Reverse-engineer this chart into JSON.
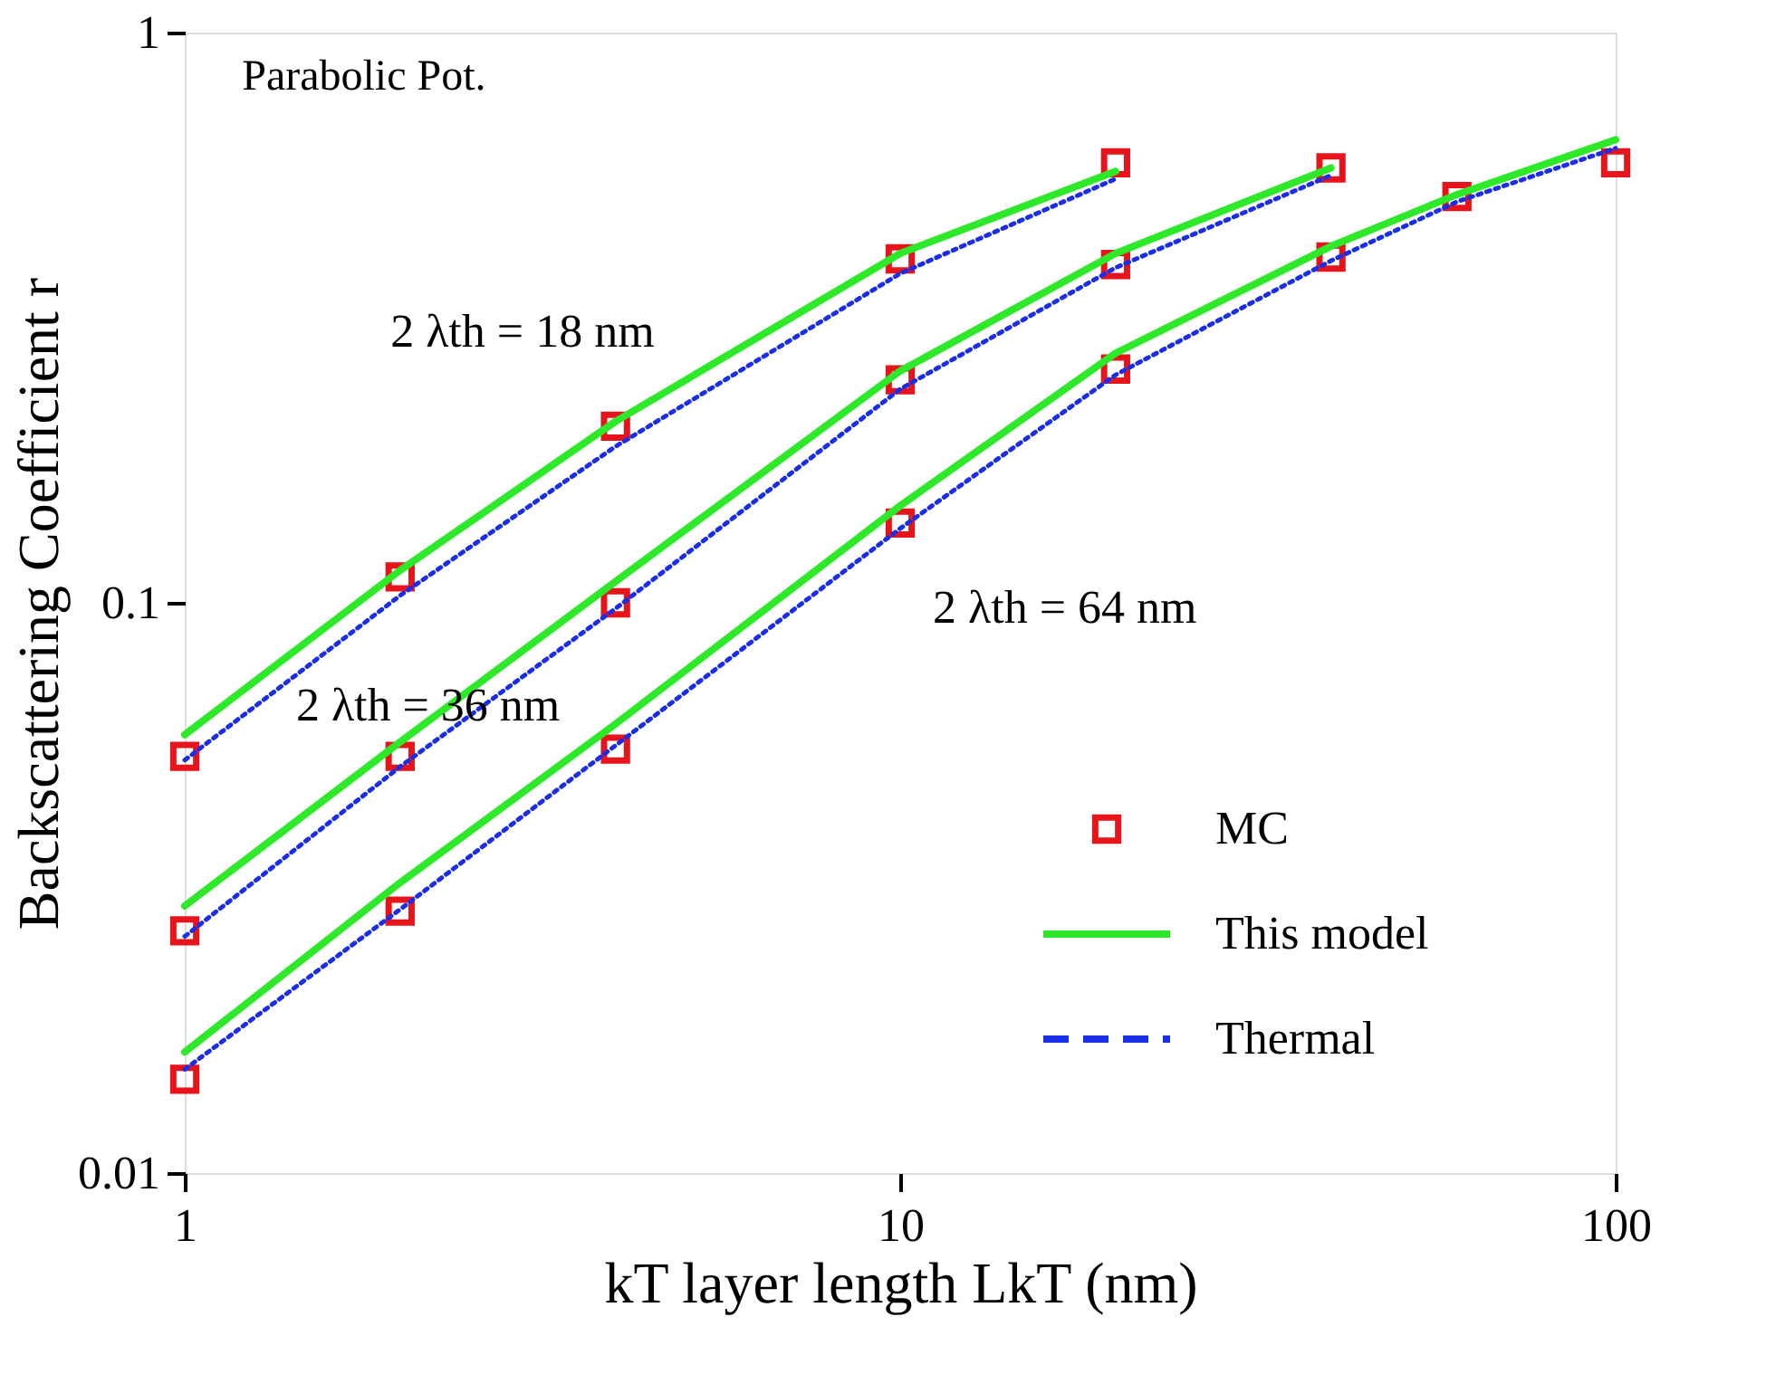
{
  "chart_data": {
    "type": "line",
    "xlabel": "kT layer length LkT (nm)",
    "ylabel": "Backscattering Coefficient r",
    "log": "xy",
    "xlim": [
      1,
      100
    ],
    "ylim": [
      0.01,
      1
    ],
    "xticks": [
      1,
      10,
      100
    ],
    "yticks": [
      0.01,
      0.1,
      1
    ],
    "grid": false,
    "legend": "bottom right",
    "annotations": [
      "Parabolic Pot.",
      "2 λth = 18 nm",
      "2 λth = 36 nm",
      "2 λth = 64 nm"
    ],
    "series": [
      {
        "name": "MC",
        "type": "scatter",
        "marker": "square",
        "color": "#e8141b",
        "x": [
          1,
          2,
          4,
          10,
          20
        ],
        "values": [
          0.0538,
          0.111,
          0.204,
          0.401,
          0.591
        ]
      },
      {
        "type": "scatter",
        "marker": "square",
        "color": "#e8141b",
        "x": [
          1,
          2,
          4,
          10,
          20,
          40
        ],
        "values": [
          0.0266,
          0.0538,
          0.1,
          0.246,
          0.392,
          0.579
        ]
      },
      {
        "type": "scatter",
        "marker": "square",
        "color": "#e8141b",
        "x": [
          1,
          2,
          4,
          10,
          20,
          40,
          60,
          100
        ],
        "values": [
          0.0146,
          0.0288,
          0.0554,
          0.138,
          0.257,
          0.404,
          0.516,
          0.591
        ]
      },
      {
        "name": "This model",
        "line_style": "solid",
        "color": "#2ee82a",
        "x": [
          1,
          2,
          4,
          10,
          20
        ],
        "values": [
          0.0587,
          0.114,
          0.208,
          0.41,
          0.571
        ]
      },
      {
        "line_style": "solid",
        "color": "#2ee82a",
        "x": [
          1,
          2,
          4,
          10,
          20,
          40
        ],
        "values": [
          0.0294,
          0.057,
          0.109,
          0.255,
          0.41,
          0.579
        ]
      },
      {
        "line_style": "solid",
        "color": "#2ee82a",
        "x": [
          1,
          2,
          4,
          10,
          20,
          40,
          60,
          100
        ],
        "values": [
          0.0163,
          0.0323,
          0.0613,
          0.148,
          0.274,
          0.422,
          0.52,
          0.649
        ]
      },
      {
        "name": "Thermal",
        "line_style": "dotted",
        "color": "#1a2ee8",
        "x": [
          1,
          2,
          4,
          10,
          20
        ],
        "values": [
          0.053,
          0.103,
          0.188,
          0.378,
          0.554
        ]
      },
      {
        "line_style": "dotted",
        "color": "#1a2ee8",
        "x": [
          1,
          2,
          4,
          10,
          20,
          40
        ],
        "values": [
          0.026,
          0.0516,
          0.0977,
          0.237,
          0.387,
          0.562
        ]
      },
      {
        "line_style": "dotted",
        "color": "#1a2ee8",
        "x": [
          1,
          2,
          4,
          10,
          20,
          40,
          60,
          100
        ],
        "values": [
          0.0152,
          0.029,
          0.0562,
          0.135,
          0.251,
          0.398,
          0.505,
          0.627
        ]
      }
    ]
  }
}
